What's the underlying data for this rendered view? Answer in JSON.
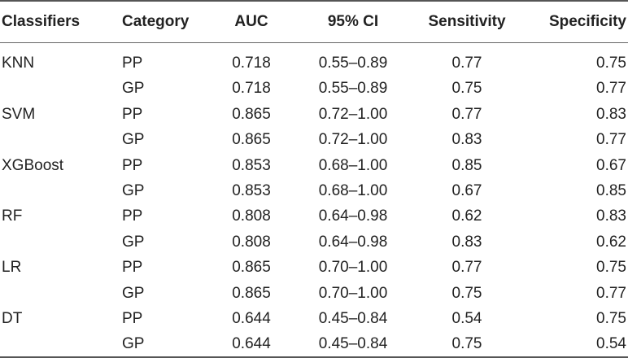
{
  "table": {
    "headers": [
      "Classifiers",
      "Category",
      "AUC",
      "95% CI",
      "Sensitivity",
      "Specificity"
    ],
    "rows": [
      [
        "KNN",
        "PP",
        "0.718",
        "0.55–0.89",
        "0.77",
        "0.75"
      ],
      [
        "",
        "GP",
        "0.718",
        "0.55–0.89",
        "0.75",
        "0.77"
      ],
      [
        "SVM",
        "PP",
        "0.865",
        "0.72–1.00",
        "0.77",
        "0.83"
      ],
      [
        "",
        "GP",
        "0.865",
        "0.72–1.00",
        "0.83",
        "0.77"
      ],
      [
        "XGBoost",
        "PP",
        "0.853",
        "0.68–1.00",
        "0.85",
        "0.67"
      ],
      [
        "",
        "GP",
        "0.853",
        "0.68–1.00",
        "0.67",
        "0.85"
      ],
      [
        "RF",
        "PP",
        "0.808",
        "0.64–0.98",
        "0.62",
        "0.83"
      ],
      [
        "",
        "GP",
        "0.808",
        "0.64–0.98",
        "0.83",
        "0.62"
      ],
      [
        "LR",
        "PP",
        "0.865",
        "0.70–1.00",
        "0.77",
        "0.75"
      ],
      [
        "",
        "GP",
        "0.865",
        "0.70–1.00",
        "0.75",
        "0.77"
      ],
      [
        "DT",
        "PP",
        "0.644",
        "0.45–0.84",
        "0.54",
        "0.75"
      ],
      [
        "",
        "GP",
        "0.644",
        "0.45–0.84",
        "0.75",
        "0.54"
      ]
    ]
  }
}
